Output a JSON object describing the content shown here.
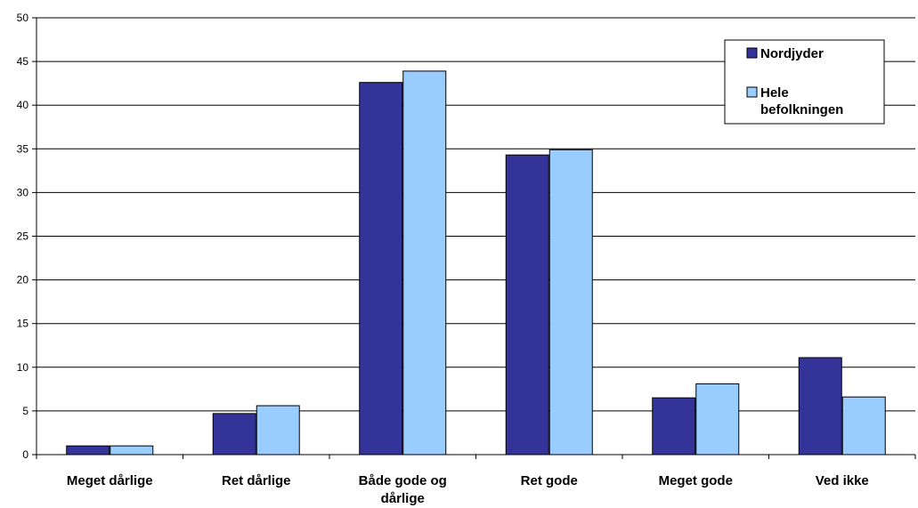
{
  "chart_data": {
    "type": "bar",
    "categories": [
      "Meget dårlige",
      "Ret dårlige",
      "Både gode og dårlige",
      "Ret gode",
      "Meget gode",
      "Ved ikke"
    ],
    "category_label_lines": [
      [
        "Meget dårlige"
      ],
      [
        "Ret dårlige"
      ],
      [
        "Både gode og",
        "dårlige"
      ],
      [
        "Ret gode"
      ],
      [
        "Meget gode"
      ],
      [
        "Ved ikke"
      ]
    ],
    "series": [
      {
        "name": "Nordjyder",
        "color": "#333399",
        "values": [
          1.0,
          4.7,
          42.6,
          34.3,
          6.5,
          11.1
        ]
      },
      {
        "name": "Hele befolkningen",
        "color": "#99CCFF",
        "values": [
          1.0,
          5.6,
          43.9,
          34.9,
          8.1,
          6.6
        ]
      }
    ],
    "legend_label_lines": [
      [
        "Nordjyder"
      ],
      [
        "Hele",
        "befolkningen"
      ]
    ],
    "ylim": [
      0,
      50
    ],
    "yticks": [
      0,
      5,
      10,
      15,
      20,
      25,
      30,
      35,
      40,
      45,
      50
    ],
    "grid": true,
    "legend_position": "top-right",
    "title": "",
    "xlabel": "",
    "ylabel": ""
  }
}
